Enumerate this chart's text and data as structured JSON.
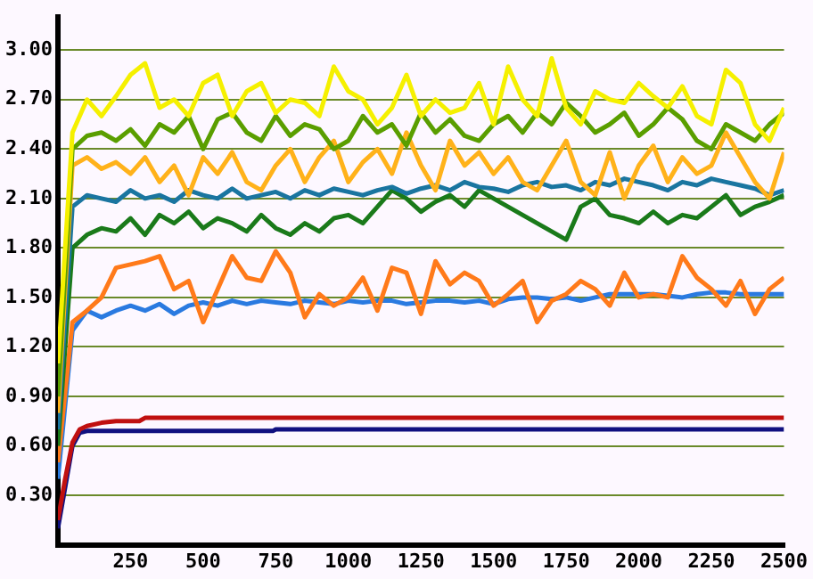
{
  "chart_data": {
    "type": "line",
    "grid": "y",
    "legend": false,
    "x": [
      0,
      50,
      100,
      150,
      200,
      250,
      300,
      350,
      400,
      450,
      500,
      550,
      600,
      650,
      700,
      750,
      800,
      850,
      900,
      950,
      1000,
      1050,
      1100,
      1150,
      1200,
      1250,
      1300,
      1350,
      1400,
      1450,
      1500,
      1550,
      1600,
      1650,
      1700,
      1750,
      1800,
      1850,
      1900,
      1950,
      2000,
      2050,
      2100,
      2150,
      2200,
      2250,
      2300,
      2350,
      2400,
      2450,
      2500
    ],
    "xlim": [
      0,
      2500
    ],
    "xticks": [
      250,
      500,
      750,
      1000,
      1250,
      1500,
      1750,
      2000,
      2250,
      2500
    ],
    "ylim": [
      0,
      3.2
    ],
    "yticks": [
      {
        "value": 0.3,
        "label": "0.30"
      },
      {
        "value": 0.6,
        "label": "0.60"
      },
      {
        "value": 0.9,
        "label": "0.90"
      },
      {
        "value": 1.2,
        "label": "1.20"
      },
      {
        "value": 1.5,
        "label": "1.50"
      },
      {
        "value": 1.8,
        "label": "1.80"
      },
      {
        "value": 2.1,
        "label": "2.10"
      },
      {
        "value": 2.4,
        "label": "2.40"
      },
      {
        "value": 2.7,
        "label": "2.70"
      },
      {
        "value": 3.0,
        "label": "3.00"
      }
    ],
    "series": [
      {
        "color": "#f5f000",
        "values": [
          1.1,
          2.5,
          2.7,
          2.6,
          2.72,
          2.85,
          2.92,
          2.65,
          2.7,
          2.6,
          2.8,
          2.85,
          2.6,
          2.75,
          2.8,
          2.62,
          2.7,
          2.68,
          2.6,
          2.9,
          2.75,
          2.7,
          2.55,
          2.65,
          2.85,
          2.6,
          2.7,
          2.62,
          2.65,
          2.8,
          2.55,
          2.9,
          2.7,
          2.6,
          2.95,
          2.65,
          2.55,
          2.75,
          2.7,
          2.68,
          2.8,
          2.72,
          2.65,
          2.78,
          2.6,
          2.55,
          2.88,
          2.8,
          2.55,
          2.45,
          2.65
        ]
      },
      {
        "color": "#5a9e00",
        "values": [
          0.9,
          2.4,
          2.48,
          2.5,
          2.45,
          2.52,
          2.42,
          2.55,
          2.5,
          2.6,
          2.4,
          2.58,
          2.62,
          2.5,
          2.45,
          2.6,
          2.48,
          2.55,
          2.52,
          2.4,
          2.45,
          2.6,
          2.5,
          2.55,
          2.42,
          2.62,
          2.5,
          2.58,
          2.48,
          2.45,
          2.55,
          2.6,
          2.5,
          2.62,
          2.55,
          2.68,
          2.6,
          2.5,
          2.55,
          2.62,
          2.48,
          2.55,
          2.65,
          2.58,
          2.45,
          2.4,
          2.55,
          2.5,
          2.45,
          2.55,
          2.62
        ]
      },
      {
        "color": "#ffb21a",
        "values": [
          0.8,
          2.3,
          2.35,
          2.28,
          2.32,
          2.25,
          2.35,
          2.2,
          2.3,
          2.12,
          2.35,
          2.25,
          2.38,
          2.2,
          2.15,
          2.3,
          2.4,
          2.2,
          2.35,
          2.45,
          2.2,
          2.32,
          2.4,
          2.25,
          2.5,
          2.3,
          2.15,
          2.45,
          2.3,
          2.38,
          2.25,
          2.35,
          2.2,
          2.15,
          2.3,
          2.45,
          2.2,
          2.12,
          2.38,
          2.1,
          2.3,
          2.42,
          2.2,
          2.35,
          2.25,
          2.3,
          2.5,
          2.35,
          2.2,
          2.1,
          2.38
        ]
      },
      {
        "color": "#1a75a0",
        "values": [
          0.7,
          2.05,
          2.12,
          2.1,
          2.08,
          2.15,
          2.1,
          2.12,
          2.08,
          2.15,
          2.12,
          2.1,
          2.16,
          2.1,
          2.12,
          2.14,
          2.1,
          2.15,
          2.12,
          2.16,
          2.14,
          2.12,
          2.15,
          2.17,
          2.13,
          2.16,
          2.18,
          2.15,
          2.2,
          2.17,
          2.16,
          2.14,
          2.18,
          2.2,
          2.17,
          2.18,
          2.15,
          2.2,
          2.18,
          2.22,
          2.2,
          2.18,
          2.15,
          2.2,
          2.18,
          2.22,
          2.2,
          2.18,
          2.16,
          2.12,
          2.15
        ]
      },
      {
        "color": "#1a7a1a",
        "values": [
          0.6,
          1.8,
          1.88,
          1.92,
          1.9,
          1.98,
          1.88,
          2.0,
          1.95,
          2.02,
          1.92,
          1.98,
          1.95,
          1.9,
          2.0,
          1.92,
          1.88,
          1.95,
          1.9,
          1.98,
          2.0,
          1.95,
          2.05,
          2.15,
          2.1,
          2.02,
          2.08,
          2.12,
          2.05,
          2.15,
          2.1,
          2.05,
          2.0,
          1.95,
          1.9,
          1.85,
          2.05,
          2.1,
          2.0,
          1.98,
          1.95,
          2.02,
          1.95,
          2.0,
          1.98,
          2.05,
          2.12,
          2.0,
          2.05,
          2.08,
          2.12
        ]
      },
      {
        "color": "#ff7a1a",
        "values": [
          0.5,
          1.35,
          1.42,
          1.5,
          1.68,
          1.7,
          1.72,
          1.75,
          1.55,
          1.6,
          1.35,
          1.55,
          1.75,
          1.62,
          1.6,
          1.78,
          1.65,
          1.38,
          1.52,
          1.45,
          1.5,
          1.62,
          1.42,
          1.68,
          1.65,
          1.4,
          1.72,
          1.58,
          1.65,
          1.6,
          1.45,
          1.52,
          1.6,
          1.35,
          1.48,
          1.52,
          1.6,
          1.55,
          1.45,
          1.65,
          1.5,
          1.52,
          1.5,
          1.75,
          1.62,
          1.55,
          1.45,
          1.6,
          1.4,
          1.55,
          1.62
        ]
      },
      {
        "color": "#2a7ae0",
        "values": [
          0.4,
          1.3,
          1.42,
          1.38,
          1.42,
          1.45,
          1.42,
          1.46,
          1.4,
          1.45,
          1.47,
          1.45,
          1.48,
          1.46,
          1.48,
          1.47,
          1.46,
          1.48,
          1.47,
          1.46,
          1.48,
          1.47,
          1.48,
          1.48,
          1.46,
          1.47,
          1.48,
          1.48,
          1.47,
          1.48,
          1.46,
          1.49,
          1.5,
          1.5,
          1.49,
          1.5,
          1.48,
          1.5,
          1.52,
          1.52,
          1.52,
          1.52,
          1.51,
          1.5,
          1.52,
          1.53,
          1.53,
          1.52,
          1.52,
          1.52,
          1.52
        ]
      },
      {
        "color": "#c01010",
        "x": [
          0,
          25,
          50,
          75,
          100,
          150,
          200,
          280,
          300,
          2500
        ],
        "values": [
          0.15,
          0.4,
          0.62,
          0.7,
          0.72,
          0.74,
          0.75,
          0.75,
          0.77,
          0.77
        ]
      },
      {
        "color": "#101080",
        "x": [
          0,
          25,
          50,
          75,
          100,
          740,
          750,
          2500
        ],
        "values": [
          0.1,
          0.35,
          0.6,
          0.68,
          0.69,
          0.69,
          0.7,
          0.7
        ]
      }
    ]
  }
}
